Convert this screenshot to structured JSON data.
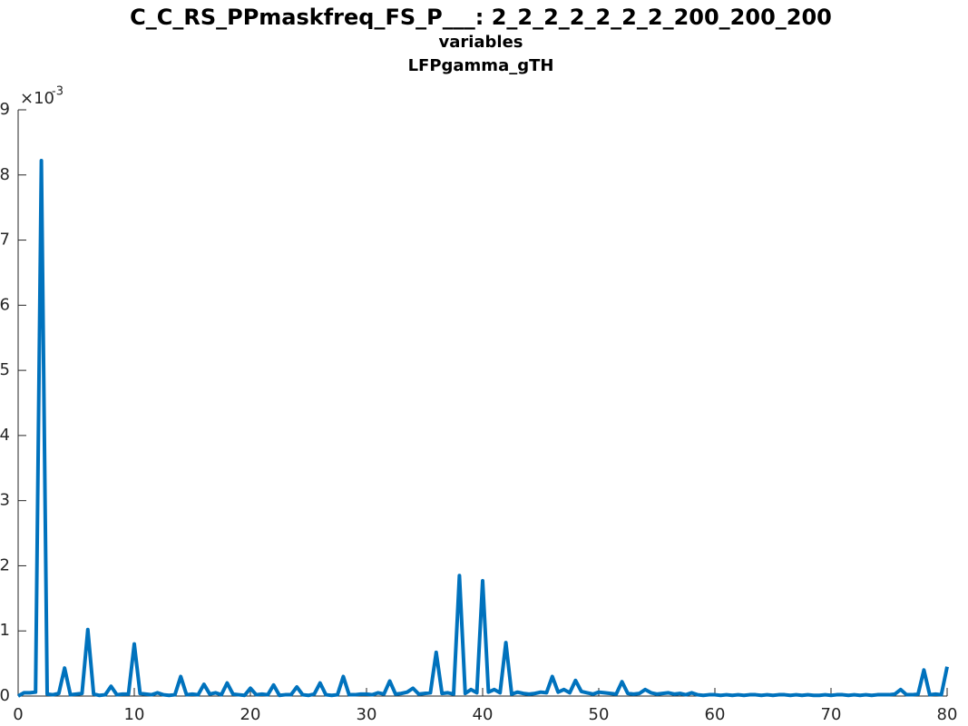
{
  "chart_data": {
    "type": "line",
    "title": "C_C_RS_PPmaskfreq_FS_P___: 2_2_2_2_2_2_2_200_200_200",
    "subtitle": "variables",
    "subtitle2": "LFPgamma_gTH",
    "y_multiplier_base": "×10",
    "y_multiplier_exponent": "-3",
    "x": [
      0,
      0.5,
      1,
      1.5,
      2,
      2.5,
      3,
      3.5,
      4,
      4.5,
      5,
      5.5,
      6,
      6.5,
      7,
      7.5,
      8,
      8.5,
      9,
      9.5,
      10,
      10.5,
      11,
      11.5,
      12,
      12.5,
      13,
      13.5,
      14,
      14.5,
      15,
      15.5,
      16,
      16.5,
      17,
      17.5,
      18,
      18.5,
      19,
      19.5,
      20,
      20.5,
      21,
      21.5,
      22,
      22.5,
      23,
      23.5,
      24,
      24.5,
      25,
      25.5,
      26,
      26.5,
      27,
      27.5,
      28,
      28.5,
      29,
      29.5,
      30,
      30.5,
      31,
      31.5,
      32,
      32.5,
      33,
      33.5,
      34,
      34.5,
      35,
      35.5,
      36,
      36.5,
      37,
      37.5,
      38,
      38.5,
      39,
      39.5,
      40,
      40.5,
      41,
      41.5,
      42,
      42.5,
      43,
      43.5,
      44,
      44.5,
      45,
      45.5,
      46,
      46.5,
      47,
      47.5,
      48,
      48.5,
      49,
      49.5,
      50,
      50.5,
      51,
      51.5,
      52,
      52.5,
      53,
      53.5,
      54,
      54.5,
      55,
      55.5,
      56,
      56.5,
      57,
      57.5,
      58,
      58.5,
      59,
      59.5,
      60,
      60.5,
      61,
      61.5,
      62,
      62.5,
      63,
      63.5,
      64,
      64.5,
      65,
      65.5,
      66,
      66.5,
      67,
      67.5,
      68,
      68.5,
      69,
      69.5,
      70,
      70.5,
      71,
      71.5,
      72,
      72.5,
      73,
      73.5,
      74,
      74.5,
      75,
      75.5,
      76,
      76.5,
      77,
      77.5,
      78,
      78.5,
      79,
      79.5,
      80
    ],
    "series": [
      {
        "color": "#0072bd",
        "values": [
          0.0,
          0.05,
          0.05,
          0.06,
          8.22,
          0.03,
          0.02,
          0.04,
          0.43,
          0.02,
          0.03,
          0.04,
          1.02,
          0.03,
          0.01,
          0.02,
          0.15,
          0.02,
          0.03,
          0.03,
          0.8,
          0.04,
          0.03,
          0.02,
          0.05,
          0.02,
          0.01,
          0.02,
          0.3,
          0.02,
          0.03,
          0.02,
          0.18,
          0.03,
          0.05,
          0.02,
          0.2,
          0.03,
          0.02,
          0.01,
          0.12,
          0.02,
          0.03,
          0.02,
          0.17,
          0.01,
          0.02,
          0.02,
          0.14,
          0.02,
          0.01,
          0.03,
          0.2,
          0.02,
          0.01,
          0.02,
          0.3,
          0.02,
          0.02,
          0.03,
          0.03,
          0.02,
          0.05,
          0.03,
          0.23,
          0.03,
          0.04,
          0.06,
          0.12,
          0.03,
          0.04,
          0.05,
          0.67,
          0.04,
          0.05,
          0.03,
          1.85,
          0.04,
          0.1,
          0.05,
          1.77,
          0.06,
          0.1,
          0.05,
          0.82,
          0.03,
          0.06,
          0.04,
          0.03,
          0.04,
          0.06,
          0.05,
          0.3,
          0.06,
          0.1,
          0.05,
          0.24,
          0.07,
          0.05,
          0.03,
          0.06,
          0.05,
          0.04,
          0.03,
          0.22,
          0.04,
          0.03,
          0.04,
          0.1,
          0.05,
          0.03,
          0.04,
          0.05,
          0.03,
          0.04,
          0.02,
          0.05,
          0.02,
          0.01,
          0.02,
          0.02,
          0.01,
          0.02,
          0.01,
          0.02,
          0.01,
          0.02,
          0.02,
          0.01,
          0.02,
          0.01,
          0.02,
          0.02,
          0.01,
          0.02,
          0.01,
          0.02,
          0.01,
          0.01,
          0.02,
          0.01,
          0.02,
          0.02,
          0.01,
          0.02,
          0.01,
          0.02,
          0.01,
          0.02,
          0.02,
          0.02,
          0.03,
          0.1,
          0.02,
          0.02,
          0.03,
          0.4,
          0.02,
          0.03,
          0.02,
          0.45
        ]
      }
    ],
    "xlim": [
      0,
      80
    ],
    "xticks": [
      0,
      10,
      20,
      30,
      40,
      50,
      60,
      70,
      80
    ],
    "ylim": [
      0,
      9
    ],
    "yticks": [
      0,
      1,
      2,
      3,
      4,
      5,
      6,
      7,
      8,
      9
    ]
  }
}
